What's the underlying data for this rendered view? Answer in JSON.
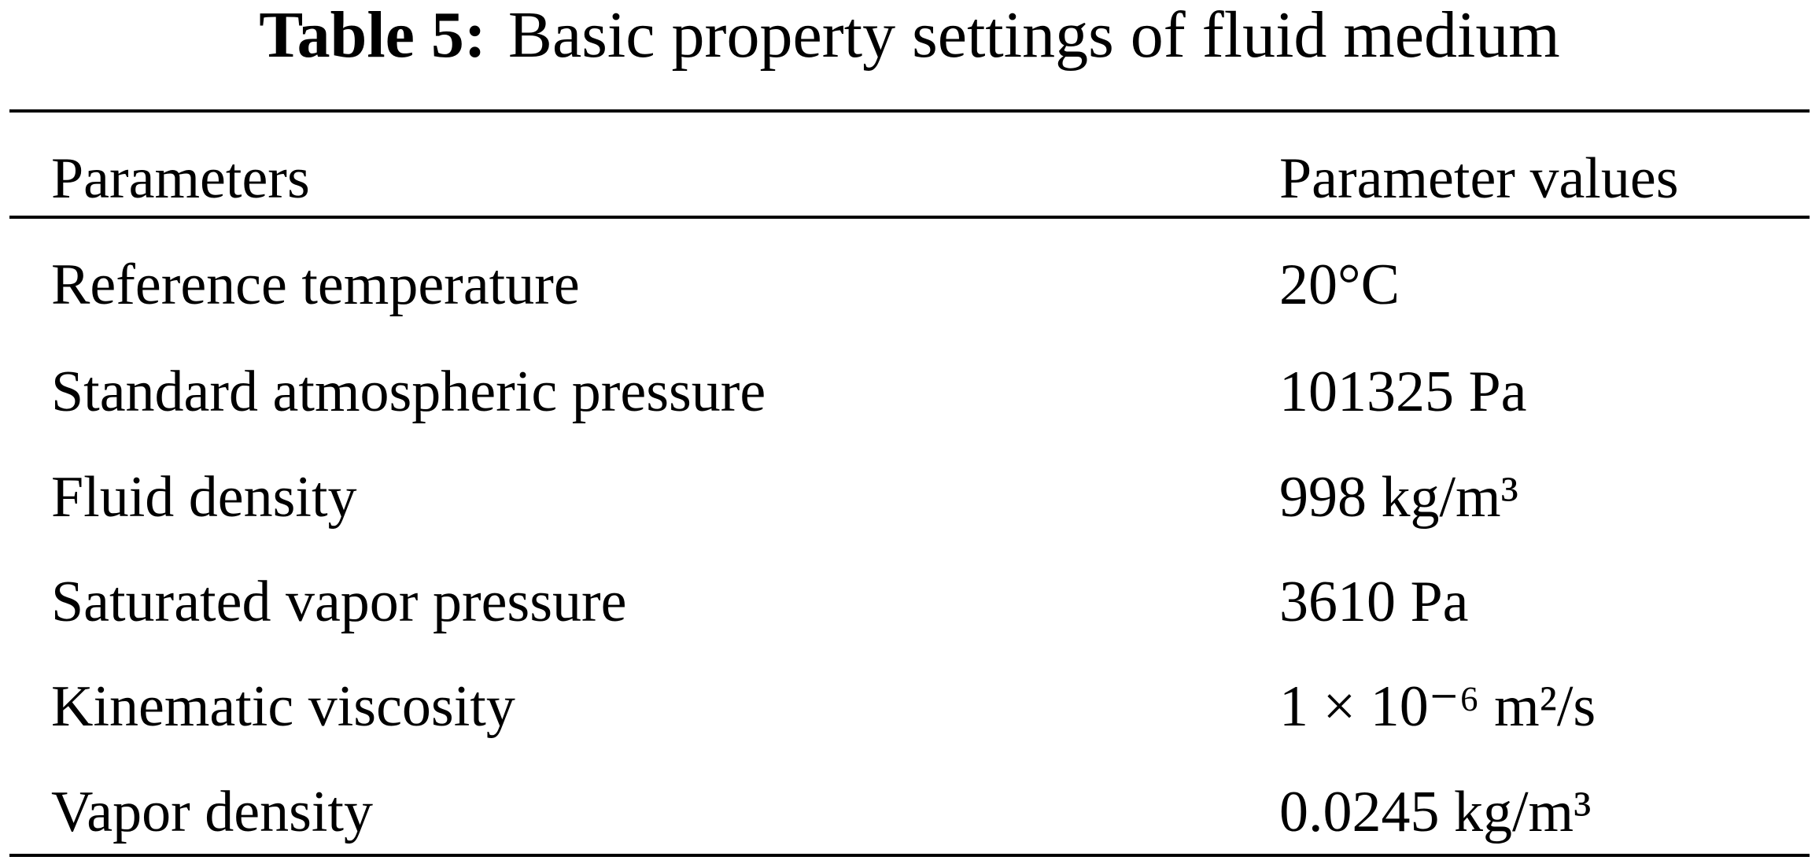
{
  "title": {
    "label": "Table 5:",
    "text": "Basic property settings of fluid medium"
  },
  "table": {
    "header": [
      "Parameters",
      "Parameter values"
    ],
    "rows": [
      [
        "Reference temperature",
        "20°C"
      ],
      [
        "Standard atmospheric pressure",
        "101325 Pa"
      ],
      [
        "Fluid density",
        "998 kg/m³"
      ],
      [
        "Saturated vapor pressure",
        "3610 Pa"
      ],
      [
        "Kinematic viscosity",
        "1 × 10⁻⁶ m²/s"
      ],
      [
        "Vapor density",
        "0.0245 kg/m³"
      ]
    ]
  }
}
